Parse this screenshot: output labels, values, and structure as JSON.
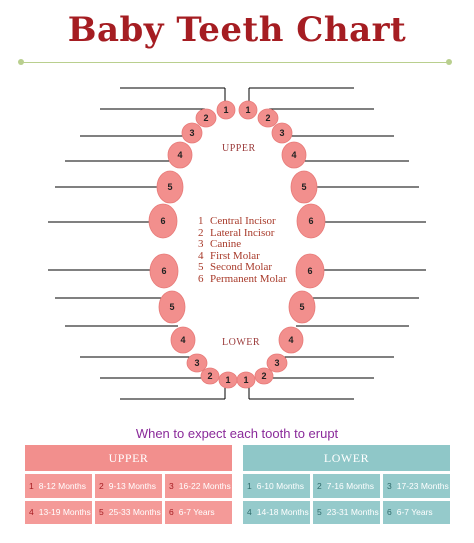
{
  "title": "Baby Teeth Chart",
  "jaw_labels": {
    "upper": "UPPER",
    "lower": "LOWER"
  },
  "legend": [
    {
      "num": "1",
      "label": "Central Incisor"
    },
    {
      "num": "2",
      "label": "Lateral Incisor"
    },
    {
      "num": "3",
      "label": "Canine"
    },
    {
      "num": "4",
      "label": "First Molar"
    },
    {
      "num": "5",
      "label": "Second Molar"
    },
    {
      "num": "6",
      "label": "Permanent Molar"
    }
  ],
  "tooth_numbers": {
    "upper": [
      "1",
      "2",
      "3",
      "4",
      "5",
      "6"
    ],
    "lower": [
      "6",
      "5",
      "4",
      "3",
      "2",
      "1"
    ]
  },
  "eruption_title": "When to expect each tooth to erupt",
  "upper_table": {
    "header": "UPPER",
    "cells": [
      {
        "num": "1",
        "text": "8-12 Months"
      },
      {
        "num": "2",
        "text": "9-13 Months"
      },
      {
        "num": "3",
        "text": "16-22 Months"
      },
      {
        "num": "4",
        "text": "13-19 Months"
      },
      {
        "num": "5",
        "text": "25-33 Months"
      },
      {
        "num": "6",
        "text": "6-7 Years"
      }
    ]
  },
  "lower_table": {
    "header": "LOWER",
    "cells": [
      {
        "num": "1",
        "text": "6-10 Months"
      },
      {
        "num": "2",
        "text": "7-16 Months"
      },
      {
        "num": "3",
        "text": "17-23 Months"
      },
      {
        "num": "4",
        "text": "14-18 Months"
      },
      {
        "num": "5",
        "text": "23-31 Months"
      },
      {
        "num": "6",
        "text": "6-7 Years"
      }
    ]
  },
  "colors": {
    "title": "#a51d22",
    "tooth": "#f28f8d",
    "upper_table": "#f28f8d",
    "lower_table": "#8fc7c8",
    "heading": "#8a2a9a"
  }
}
